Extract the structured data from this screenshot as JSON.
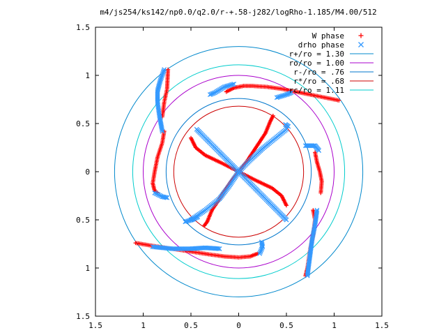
{
  "chart_data": {
    "type": "scatter",
    "title": "m4/js254/ks142/np0.0/q2.0/r-+.58-j282/logRho-1.185/M4.00/512",
    "xlim": [
      -1.5,
      1.5
    ],
    "ylim": [
      -1.5,
      1.5
    ],
    "x_ticks": [
      -1.5,
      -1,
      -0.5,
      0,
      0.5,
      1,
      1.5
    ],
    "y_ticks": [
      -1.5,
      -1,
      -0.5,
      0,
      0.5,
      1,
      1.5
    ],
    "x_tick_labels": [
      "1.5",
      "1",
      "0.5",
      "0",
      "0.5",
      "1",
      "1.5"
    ],
    "y_tick_labels": [
      "1.5",
      "1",
      "0.5",
      "0",
      "0.5",
      "1",
      "1.5"
    ],
    "grid": false,
    "legend_position": "top-right",
    "legend": [
      {
        "label": "W phase",
        "marker": "+",
        "color": "#ff0000"
      },
      {
        "label": "drho phase",
        "marker": "x",
        "color": "#3399ff"
      },
      {
        "label": "r+/ro = 1.30",
        "marker": "line",
        "color": "#0088cc"
      },
      {
        "label": "ro/ro = 1.00",
        "marker": "line",
        "color": "#aa00cc"
      },
      {
        "label": "r-/ro = .76",
        "marker": "line",
        "color": "#0077cc"
      },
      {
        "label": "r*/ro = .68",
        "marker": "line",
        "color": "#cc0000"
      },
      {
        "label": "rc/ro = 1.11",
        "marker": "line",
        "color": "#00cccc"
      }
    ],
    "circles": [
      {
        "name": "r+/ro = 1.30",
        "r": 1.3,
        "color": "#0088cc"
      },
      {
        "name": "ro/ro = 1.00",
        "r": 1.0,
        "color": "#aa00cc"
      },
      {
        "name": "r-/ro = .76",
        "r": 0.76,
        "color": "#0077cc"
      },
      {
        "name": "r*/ro = .68",
        "r": 0.68,
        "color": "#cc0000"
      },
      {
        "name": "rc/ro = 1.11",
        "r": 1.11,
        "color": "#00cccc"
      }
    ],
    "series": [
      {
        "name": "W phase",
        "color": "#ff0000",
        "marker": "+",
        "curves": [
          [
            [
              -0.13,
              0.83
            ],
            [
              -0.05,
              0.87
            ],
            [
              0.05,
              0.89
            ],
            [
              0.15,
              0.89
            ],
            [
              0.3,
              0.88
            ],
            [
              0.45,
              0.86
            ],
            [
              0.6,
              0.83
            ],
            [
              0.75,
              0.8
            ],
            [
              0.9,
              0.77
            ],
            [
              1.05,
              0.74
            ]
          ],
          [
            [
              -0.78,
              0.42
            ],
            [
              -0.8,
              0.3
            ],
            [
              -0.85,
              0.15
            ],
            [
              -0.88,
              0
            ],
            [
              -0.9,
              -0.12
            ],
            [
              -0.88,
              -0.2
            ],
            [
              -0.85,
              -0.22
            ]
          ],
          [
            [
              -0.8,
              0.57
            ],
            [
              -0.78,
              0.72
            ],
            [
              -0.75,
              0.86
            ],
            [
              -0.74,
              1.06
            ]
          ],
          [
            [
              -1.08,
              -0.74
            ],
            [
              -0.9,
              -0.77
            ],
            [
              -0.7,
              -0.8
            ],
            [
              -0.5,
              -0.83
            ],
            [
              -0.3,
              -0.86
            ],
            [
              -0.15,
              -0.88
            ],
            [
              0,
              -0.89
            ],
            [
              0.12,
              -0.88
            ],
            [
              0.2,
              -0.85
            ]
          ],
          [
            [
              0.78,
              -0.4
            ],
            [
              0.8,
              -0.5
            ],
            [
              0.78,
              -0.65
            ],
            [
              0.75,
              -0.8
            ],
            [
              0.72,
              -1.0
            ],
            [
              0.7,
              -1.08
            ]
          ],
          [
            [
              0.8,
              0.2
            ],
            [
              0.82,
              0.1
            ],
            [
              0.85,
              0
            ],
            [
              0.87,
              -0.1
            ],
            [
              0.86,
              -0.22
            ]
          ],
          [
            [
              -0.5,
              0.35
            ],
            [
              -0.45,
              0.25
            ],
            [
              -0.35,
              0.17
            ],
            [
              -0.2,
              0.1
            ],
            [
              -0.1,
              0.05
            ],
            [
              0,
              0
            ],
            [
              0.08,
              0.1
            ],
            [
              0.18,
              0.25
            ],
            [
              0.28,
              0.4
            ],
            [
              0.33,
              0.52
            ],
            [
              0.36,
              0.58
            ]
          ],
          [
            [
              0.5,
              -0.35
            ],
            [
              0.45,
              -0.25
            ],
            [
              0.35,
              -0.17
            ],
            [
              0.2,
              -0.1
            ],
            [
              0.1,
              -0.05
            ],
            [
              0,
              0
            ],
            [
              -0.08,
              -0.1
            ],
            [
              -0.18,
              -0.25
            ],
            [
              -0.28,
              -0.4
            ],
            [
              -0.33,
              -0.52
            ],
            [
              -0.36,
              -0.56
            ]
          ]
        ]
      },
      {
        "name": "drho phase",
        "color": "#3399ff",
        "marker": "x",
        "curves": [
          [
            [
              -0.9,
              -0.78
            ],
            [
              -0.7,
              -0.8
            ],
            [
              -0.5,
              -0.8
            ],
            [
              -0.35,
              -0.79
            ],
            [
              -0.2,
              -0.8
            ]
          ],
          [
            [
              0.24,
              -0.73
            ],
            [
              0.25,
              -0.78
            ],
            [
              0.22,
              -0.85
            ]
          ],
          [
            [
              -0.44,
              0.44
            ],
            [
              -0.3,
              0.3
            ],
            [
              -0.15,
              0.15
            ],
            [
              0,
              0
            ],
            [
              0.15,
              -0.15
            ],
            [
              0.3,
              -0.3
            ],
            [
              0.45,
              -0.45
            ],
            [
              0.5,
              -0.5
            ]
          ],
          [
            [
              -0.5,
              -0.5
            ],
            [
              -0.35,
              -0.4
            ],
            [
              -0.2,
              -0.28
            ],
            [
              -0.1,
              -0.15
            ],
            [
              0,
              0
            ],
            [
              0.12,
              0.12
            ],
            [
              0.25,
              0.24
            ],
            [
              0.4,
              0.36
            ],
            [
              0.5,
              0.44
            ]
          ],
          [
            [
              -0.8,
              0.42
            ],
            [
              -0.83,
              0.58
            ],
            [
              -0.85,
              0.72
            ],
            [
              -0.85,
              0.84
            ],
            [
              -0.82,
              0.95
            ],
            [
              -0.78,
              1.06
            ]
          ],
          [
            [
              -0.3,
              0.8
            ],
            [
              -0.25,
              0.82
            ],
            [
              -0.15,
              0.88
            ],
            [
              -0.05,
              0.91
            ]
          ],
          [
            [
              0.4,
              0.77
            ],
            [
              0.5,
              0.8
            ],
            [
              0.55,
              0.82
            ]
          ],
          [
            [
              0.7,
              0.27
            ],
            [
              0.8,
              0.27
            ],
            [
              0.84,
              0.22
            ]
          ],
          [
            [
              0.82,
              -0.4
            ],
            [
              0.8,
              -0.55
            ],
            [
              0.77,
              -0.7
            ],
            [
              0.75,
              -0.85
            ],
            [
              0.73,
              -1.0
            ],
            [
              0.72,
              -1.08
            ]
          ],
          [
            [
              -0.88,
              -0.22
            ],
            [
              -0.8,
              -0.26
            ],
            [
              -0.75,
              -0.27
            ]
          ],
          [
            [
              -0.43,
              -0.47
            ],
            [
              -0.49,
              -0.5
            ],
            [
              -0.56,
              -0.52
            ]
          ],
          [
            [
              0.49,
              0.49
            ],
            [
              0.52,
              0.47
            ]
          ]
        ]
      }
    ]
  }
}
